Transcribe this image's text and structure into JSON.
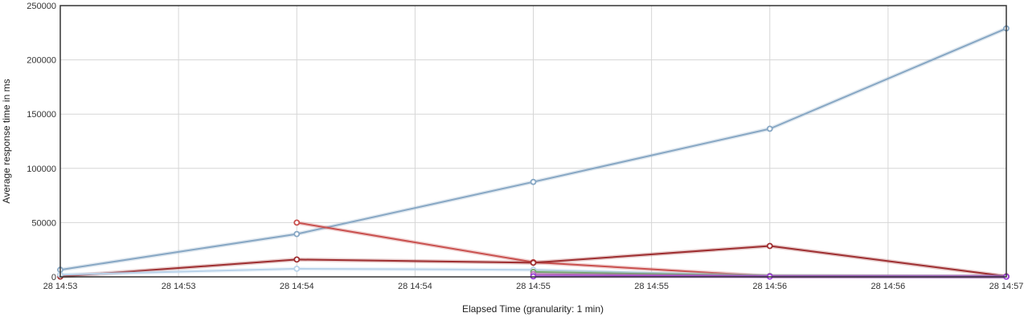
{
  "chart_data": {
    "type": "line",
    "xlabel": "Elapsed Time (granularity: 1 min)",
    "ylabel": "Average response time in ms",
    "ylim": [
      0,
      250000
    ],
    "yticks": [
      "0",
      "50000",
      "100000",
      "150000",
      "200000",
      "250000"
    ],
    "xticks": [
      "28 14:53",
      "28 14:53",
      "28 14:54",
      "28 14:54",
      "28 14:55",
      "28 14:55",
      "28 14:56",
      "28 14:56",
      "28 14:57"
    ],
    "xlim": [
      0,
      4
    ],
    "grid": true,
    "series": [
      {
        "color": "#87a7c4",
        "points": [
          [
            0,
            6500
          ],
          [
            1,
            39500
          ],
          [
            2,
            87500
          ],
          [
            3,
            136500
          ],
          [
            4,
            229000
          ]
        ]
      },
      {
        "color": "#c9504e",
        "points": [
          [
            1,
            50000
          ],
          [
            2,
            13500
          ],
          [
            3,
            500
          ],
          [
            4,
            300
          ]
        ]
      },
      {
        "color": "#9e2e30",
        "points": [
          [
            0,
            300
          ],
          [
            1,
            16000
          ],
          [
            2,
            13000
          ],
          [
            3,
            28500
          ],
          [
            4,
            500
          ]
        ]
      },
      {
        "color": "#b9d3ea",
        "points": [
          [
            0,
            2000
          ],
          [
            1,
            7500
          ],
          [
            2,
            6500
          ],
          [
            3,
            800
          ],
          [
            4,
            300
          ]
        ]
      },
      {
        "color": "#6fa86a",
        "points": [
          [
            2,
            4500
          ],
          [
            3,
            800
          ],
          [
            4,
            300
          ]
        ]
      },
      {
        "color": "#b46fb0",
        "points": [
          [
            2,
            2500
          ],
          [
            3,
            600
          ],
          [
            4,
            200
          ]
        ]
      },
      {
        "color": "#9a3fd6",
        "points": [
          [
            2,
            500
          ],
          [
            3,
            300
          ],
          [
            4,
            200
          ]
        ]
      }
    ]
  }
}
